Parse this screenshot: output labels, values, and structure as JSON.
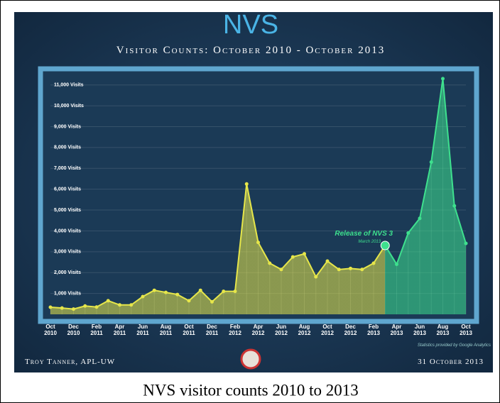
{
  "chart_data": {
    "type": "area-line",
    "title": "NVS",
    "subtitle": "Visitor Counts: October 2010 - October 2013",
    "categories": [
      "Oct 2010",
      null,
      "Dec 2010",
      null,
      "Feb 2011",
      null,
      "Apr 2011",
      null,
      "Jun 2011",
      null,
      "Aug 2011",
      null,
      "Oct 2011",
      null,
      "Dec 2011",
      null,
      "Feb 2012",
      null,
      "Apr 2012",
      null,
      "Jun 2012",
      null,
      "Aug 2012",
      null,
      "Oct 2012",
      null,
      "Dec 2012",
      null,
      "Feb 2013",
      null,
      "Apr 2013",
      null,
      "Jun 2013",
      null,
      "Aug 2013",
      null,
      "Oct 2013"
    ],
    "values": [
      340,
      300,
      250,
      400,
      350,
      650,
      450,
      450,
      850,
      1150,
      1050,
      950,
      650,
      1150,
      600,
      1100,
      1100,
      6250,
      3450,
      2450,
      2150,
      2750,
      2900,
      1800,
      2550,
      2150,
      2200,
      2150,
      2450,
      3300,
      2400,
      3900,
      4600,
      7300,
      11300,
      5200,
      3400
    ],
    "colors": [
      "#e6e64a",
      "#3ee08e"
    ],
    "ylim": [
      0,
      11500
    ],
    "yticks": [
      {
        "value": 1000,
        "label": "1,000 Visits"
      },
      {
        "value": 2000,
        "label": "2,000 Visits"
      },
      {
        "value": 3000,
        "label": "3,000 Visits"
      },
      {
        "value": 4000,
        "label": "4,000 Visits"
      },
      {
        "value": 5000,
        "label": "5,000 Visits"
      },
      {
        "value": 6000,
        "label": "6,000 Visits"
      },
      {
        "value": 7000,
        "label": "7,000 Visits"
      },
      {
        "value": 8000,
        "label": "8,000 Visits"
      },
      {
        "value": 9000,
        "label": "9,000 Visits"
      },
      {
        "value": 10000,
        "label": "10,000 Visits"
      },
      {
        "value": 11000,
        "label": "11,000 Visits"
      }
    ],
    "grid": true,
    "annotations": [
      {
        "label": "Release of NVS 3",
        "sublabel": "March 2013",
        "at": 29
      }
    ],
    "credit": "Statistics provided by Google Analytics",
    "author": "Troy Tanner, APL-UW",
    "date": "31 October 2013",
    "caption": "NVS visitor counts 2010 to 2013"
  }
}
